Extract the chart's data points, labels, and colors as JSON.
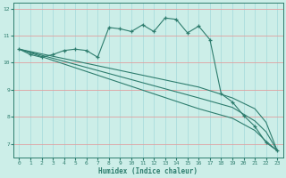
{
  "xlabel": "Humidex (Indice chaleur)",
  "bg_color": "#cceee8",
  "line_color": "#2e7d6e",
  "xlim": [
    -0.5,
    23.5
  ],
  "ylim": [
    6.5,
    12.2
  ],
  "xticks": [
    0,
    1,
    2,
    3,
    4,
    5,
    6,
    7,
    8,
    9,
    10,
    11,
    12,
    13,
    14,
    15,
    16,
    17,
    18,
    19,
    20,
    21,
    22,
    23
  ],
  "yticks": [
    7,
    8,
    9,
    10,
    11,
    12
  ],
  "series1": [
    [
      0,
      10.5
    ],
    [
      1,
      10.3
    ],
    [
      2,
      10.2
    ],
    [
      3,
      10.3
    ],
    [
      4,
      10.45
    ],
    [
      5,
      10.5
    ],
    [
      6,
      10.45
    ],
    [
      7,
      10.2
    ],
    [
      8,
      11.3
    ],
    [
      9,
      11.25
    ],
    [
      10,
      11.15
    ],
    [
      11,
      11.4
    ],
    [
      12,
      11.15
    ],
    [
      13,
      11.65
    ],
    [
      14,
      11.6
    ],
    [
      15,
      11.1
    ],
    [
      16,
      11.35
    ],
    [
      17,
      10.85
    ],
    [
      18,
      8.85
    ],
    [
      19,
      8.55
    ],
    [
      20,
      8.05
    ],
    [
      21,
      7.65
    ],
    [
      22,
      7.05
    ],
    [
      23,
      6.75
    ]
  ],
  "line2": [
    [
      0,
      10.5
    ],
    [
      4,
      10.15
    ],
    [
      8,
      9.8
    ],
    [
      12,
      9.45
    ],
    [
      16,
      9.1
    ],
    [
      19,
      8.7
    ],
    [
      21,
      8.3
    ],
    [
      22,
      7.8
    ],
    [
      23,
      6.75
    ]
  ],
  "line3": [
    [
      0,
      10.5
    ],
    [
      4,
      10.05
    ],
    [
      8,
      9.6
    ],
    [
      12,
      9.15
    ],
    [
      16,
      8.7
    ],
    [
      19,
      8.35
    ],
    [
      21,
      7.85
    ],
    [
      22,
      7.45
    ],
    [
      23,
      6.75
    ]
  ],
  "line4": [
    [
      0,
      10.5
    ],
    [
      4,
      9.95
    ],
    [
      8,
      9.4
    ],
    [
      12,
      8.85
    ],
    [
      16,
      8.3
    ],
    [
      19,
      7.95
    ],
    [
      21,
      7.5
    ],
    [
      22,
      7.1
    ],
    [
      23,
      6.75
    ]
  ]
}
